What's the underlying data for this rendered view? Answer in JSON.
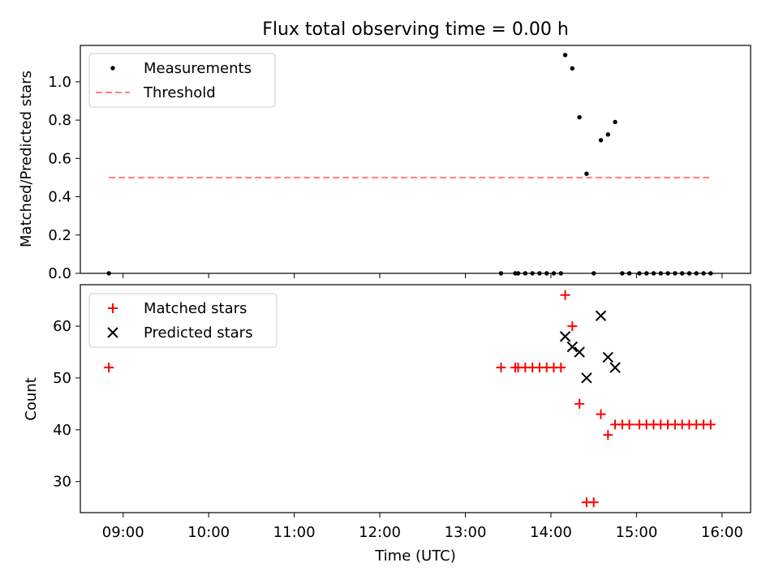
{
  "figure": {
    "title": "Flux total observing time = 0.00 h"
  },
  "chart_data": [
    {
      "type": "scatter",
      "panel": "top",
      "title": "Flux total observing time = 0.00 h",
      "xlabel": "",
      "ylabel": "Matched/Predicted stars",
      "ylim": [
        0,
        1.19
      ],
      "yticks": [
        "0.0",
        "0.2",
        "0.4",
        "0.6",
        "0.8",
        "1.0"
      ],
      "grid": false,
      "legend_position": "top-left",
      "series": [
        {
          "name": "Measurements",
          "marker": "dot",
          "color": "#000000",
          "points": [
            [
              "08:50",
              0.0
            ],
            [
              "13:25",
              0.0
            ],
            [
              "13:35",
              0.0
            ],
            [
              "13:37",
              0.0
            ],
            [
              "13:42",
              0.0
            ],
            [
              "13:47",
              0.0
            ],
            [
              "13:52",
              0.0
            ],
            [
              "13:57",
              0.0
            ],
            [
              "14:02",
              0.0
            ],
            [
              "14:07",
              0.0
            ],
            [
              "14:10",
              1.14
            ],
            [
              "14:15",
              1.07
            ],
            [
              "14:20",
              0.815
            ],
            [
              "14:25",
              0.52
            ],
            [
              "14:30",
              0.0
            ],
            [
              "14:35",
              0.695
            ],
            [
              "14:40",
              0.725
            ],
            [
              "14:45",
              0.79
            ],
            [
              "14:50",
              0.0
            ],
            [
              "14:55",
              0.0
            ],
            [
              "15:02",
              0.0
            ],
            [
              "15:07",
              0.0
            ],
            [
              "15:12",
              0.0
            ],
            [
              "15:17",
              0.0
            ],
            [
              "15:22",
              0.0
            ],
            [
              "15:27",
              0.0
            ],
            [
              "15:32",
              0.0
            ],
            [
              "15:37",
              0.0
            ],
            [
              "15:42",
              0.0
            ],
            [
              "15:47",
              0.0
            ],
            [
              "15:52",
              0.0
            ]
          ]
        },
        {
          "name": "Threshold",
          "marker": "dashed-line",
          "color": "#ff7f7f",
          "points": [
            [
              "08:50",
              0.5
            ],
            [
              "15:52",
              0.5
            ]
          ]
        }
      ]
    },
    {
      "type": "scatter",
      "panel": "bottom",
      "title": "",
      "xlabel": "Time (UTC)",
      "ylabel": "Count",
      "xlim": [
        "08:30",
        "16:20"
      ],
      "xticks": [
        "09:00",
        "10:00",
        "11:00",
        "12:00",
        "13:00",
        "14:00",
        "15:00",
        "16:00"
      ],
      "ylim": [
        24,
        68
      ],
      "yticks": [
        "30",
        "40",
        "50",
        "60"
      ],
      "grid": false,
      "legend_position": "top-left",
      "series": [
        {
          "name": "Matched stars",
          "marker": "plus",
          "color": "#ff0000",
          "points": [
            [
              "08:50",
              52
            ],
            [
              "13:25",
              52
            ],
            [
              "13:35",
              52
            ],
            [
              "13:37",
              52
            ],
            [
              "13:42",
              52
            ],
            [
              "13:47",
              52
            ],
            [
              "13:52",
              52
            ],
            [
              "13:57",
              52
            ],
            [
              "14:02",
              52
            ],
            [
              "14:07",
              52
            ],
            [
              "14:10",
              66
            ],
            [
              "14:15",
              60
            ],
            [
              "14:20",
              45
            ],
            [
              "14:25",
              26
            ],
            [
              "14:30",
              26
            ],
            [
              "14:35",
              43
            ],
            [
              "14:40",
              39
            ],
            [
              "14:45",
              41
            ],
            [
              "14:50",
              41
            ],
            [
              "14:55",
              41
            ],
            [
              "15:02",
              41
            ],
            [
              "15:07",
              41
            ],
            [
              "15:12",
              41
            ],
            [
              "15:17",
              41
            ],
            [
              "15:22",
              41
            ],
            [
              "15:27",
              41
            ],
            [
              "15:32",
              41
            ],
            [
              "15:37",
              41
            ],
            [
              "15:42",
              41
            ],
            [
              "15:47",
              41
            ],
            [
              "15:52",
              41
            ]
          ]
        },
        {
          "name": "Predicted stars",
          "marker": "x",
          "color": "#000000",
          "points": [
            [
              "14:10",
              58
            ],
            [
              "14:15",
              56
            ],
            [
              "14:20",
              55
            ],
            [
              "14:25",
              50
            ],
            [
              "14:35",
              62
            ],
            [
              "14:40",
              54
            ],
            [
              "14:45",
              52
            ]
          ]
        }
      ]
    }
  ]
}
